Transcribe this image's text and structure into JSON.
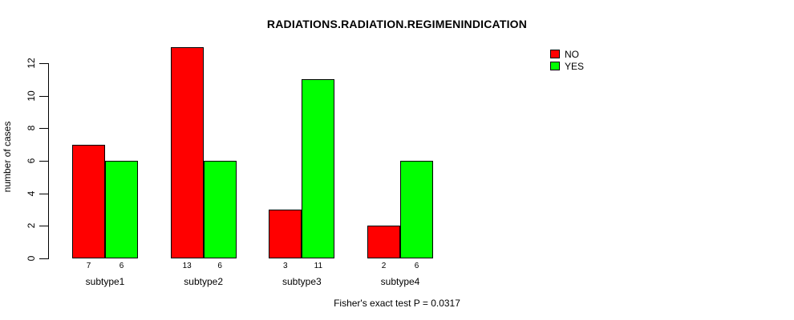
{
  "chart_data": {
    "type": "bar",
    "title": "RADIATIONS.RADIATION.REGIMENINDICATION",
    "ylabel": "number of cases",
    "xlabel": "",
    "footer": "Fisher's exact test P = 0.0317",
    "categories": [
      "subtype1",
      "subtype2",
      "subtype3",
      "subtype4"
    ],
    "series": [
      {
        "name": "NO",
        "color": "#ff0000",
        "values": [
          7,
          13,
          3,
          2
        ]
      },
      {
        "name": "YES",
        "color": "#00ff00",
        "values": [
          6,
          6,
          11,
          6
        ]
      }
    ],
    "bar_value_labels": [
      [
        7,
        6
      ],
      [
        13,
        6
      ],
      [
        3,
        11
      ],
      [
        2,
        6
      ]
    ],
    "yticks": [
      0,
      2,
      4,
      6,
      8,
      10,
      12
    ],
    "ylim": [
      0,
      13
    ],
    "grid": false,
    "legend_position": "top-right",
    "background": "#ffffff",
    "axis_color": "#000000"
  }
}
